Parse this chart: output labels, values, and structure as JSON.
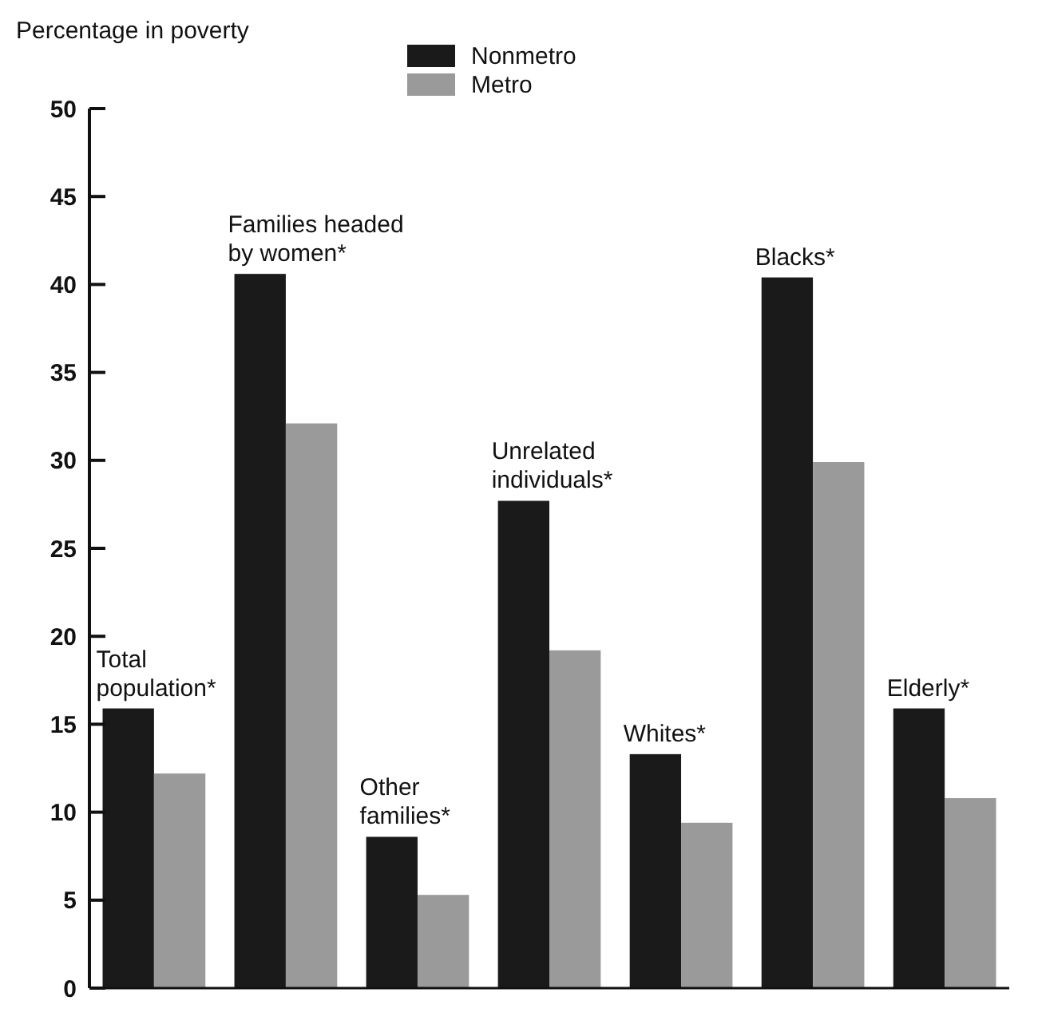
{
  "chart_data": {
    "type": "bar",
    "ylabel": "Percentage in poverty",
    "categories": [
      "Total\npopulation*",
      "Families headed\nby women*",
      "Other\nfamilies*",
      "Unrelated\nindividuals*",
      "Whites*",
      "Blacks*",
      "Elderly*"
    ],
    "series": [
      {
        "name": "Nonmetro",
        "color": "#1a1a1a",
        "values": [
          15.9,
          40.6,
          8.6,
          27.7,
          13.3,
          40.4,
          15.9
        ]
      },
      {
        "name": "Metro",
        "color": "#9a9a9a",
        "values": [
          12.2,
          32.1,
          5.3,
          19.2,
          9.4,
          29.9,
          10.8
        ]
      }
    ],
    "ylim": [
      0,
      50
    ],
    "yticks": [
      0,
      5,
      10,
      15,
      20,
      25,
      30,
      35,
      40,
      45,
      50
    ],
    "grid": false,
    "legend": "top"
  }
}
